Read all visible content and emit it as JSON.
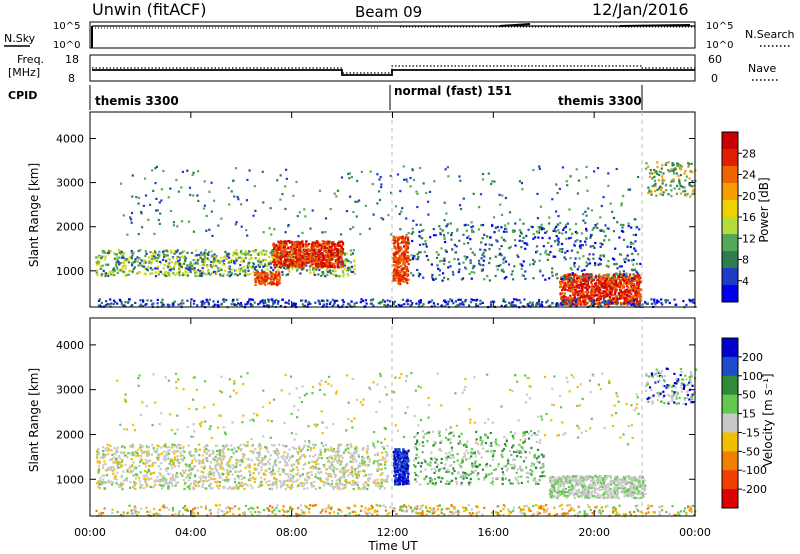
{
  "header": {
    "station": "Unwin (fitACF)",
    "beam": "Beam 09",
    "date": "12/Jan/2016"
  },
  "noise_panel": {
    "left_label": "N.Sky",
    "right_label": "N.Search",
    "left_ticks": [
      "10^5",
      "10^0"
    ],
    "right_ticks": [
      "10^5",
      "10^0"
    ]
  },
  "freq_panel": {
    "left_label_line1": "Freq.",
    "left_label_line2": "[MHz]",
    "right_label": "Nave",
    "left_ticks": [
      "18",
      "8"
    ],
    "right_ticks": [
      "60",
      "0"
    ]
  },
  "cpid_panel": {
    "label": "CPID",
    "segments": [
      {
        "text": "themis 3300",
        "start_hour": 0
      },
      {
        "text": "normal (fast) 151",
        "start_hour": 12
      },
      {
        "text": "themis 3300",
        "start_hour": 19.1
      }
    ]
  },
  "chart_data": [
    {
      "type": "heatmap",
      "name": "Power",
      "xlabel": "",
      "ylabel": "Slant Range [km]",
      "xlim_hours": [
        0,
        24
      ],
      "ylim_km": [
        180,
        4600
      ],
      "y_ticks": [
        "1000",
        "2000",
        "3000",
        "4000"
      ],
      "x_ticks": [
        "00:00",
        "04:00",
        "08:00",
        "12:00",
        "16:00",
        "20:00",
        "00:00"
      ],
      "colorbar": {
        "label": "Power [dB]",
        "ticks": [
          "4",
          "8",
          "12",
          "16",
          "20",
          "24",
          "28"
        ],
        "colors": [
          "#0000ee",
          "#1e3cc8",
          "#2e7d4f",
          "#55a855",
          "#b4dc3c",
          "#f0d200",
          "#f5a000",
          "#f06400",
          "#e02000",
          "#cc0000"
        ]
      }
    },
    {
      "type": "heatmap",
      "name": "Velocity",
      "xlabel": "Time UT",
      "ylabel": "Slant Range [km]",
      "xlim_hours": [
        0,
        24
      ],
      "ylim_km": [
        180,
        4600
      ],
      "y_ticks": [
        "1000",
        "2000",
        "3000",
        "4000"
      ],
      "x_ticks": [
        "00:00",
        "04:00",
        "08:00",
        "12:00",
        "16:00",
        "20:00",
        "00:00"
      ],
      "colorbar": {
        "label": "Velocity [m s⁻¹]",
        "ticks": [
          "200",
          "100",
          "50",
          "15",
          "-15",
          "-50",
          "-100",
          "-200"
        ],
        "colors": [
          "#0000cc",
          "#1e4cc8",
          "#2e8b3a",
          "#64c850",
          "#c8c8c8",
          "#f0c000",
          "#f08000",
          "#f04000",
          "#dd0000"
        ]
      }
    }
  ]
}
